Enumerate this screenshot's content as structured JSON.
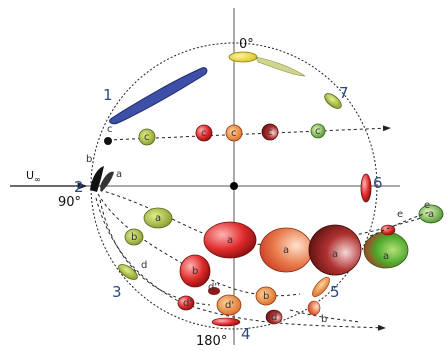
{
  "diagram": {
    "angles": {
      "top": "0°",
      "left": "90°",
      "bottom": "180°"
    },
    "flow_label": "U",
    "flow_subscript": "∞",
    "positions": [
      "1",
      "2",
      "3",
      "4",
      "5",
      "6",
      "7"
    ],
    "letters": {
      "a": "a",
      "b": "b",
      "c": "c",
      "d": "d",
      "dp": "d'",
      "dpp": "d''",
      "e": "e"
    },
    "colors": {
      "axis": "#555555",
      "circle": "#222222",
      "blue_blob": "#3e4fa8",
      "yellow_blob": "#e8d21e",
      "olive_blob": "#8a9a2e",
      "red_blob": "#e02b2b",
      "green_blob": "#3fa02a",
      "dark_red_blob": "#8a1b1b",
      "orange_blob": "#e8782c",
      "label_blue": "#2a4a86"
    }
  }
}
